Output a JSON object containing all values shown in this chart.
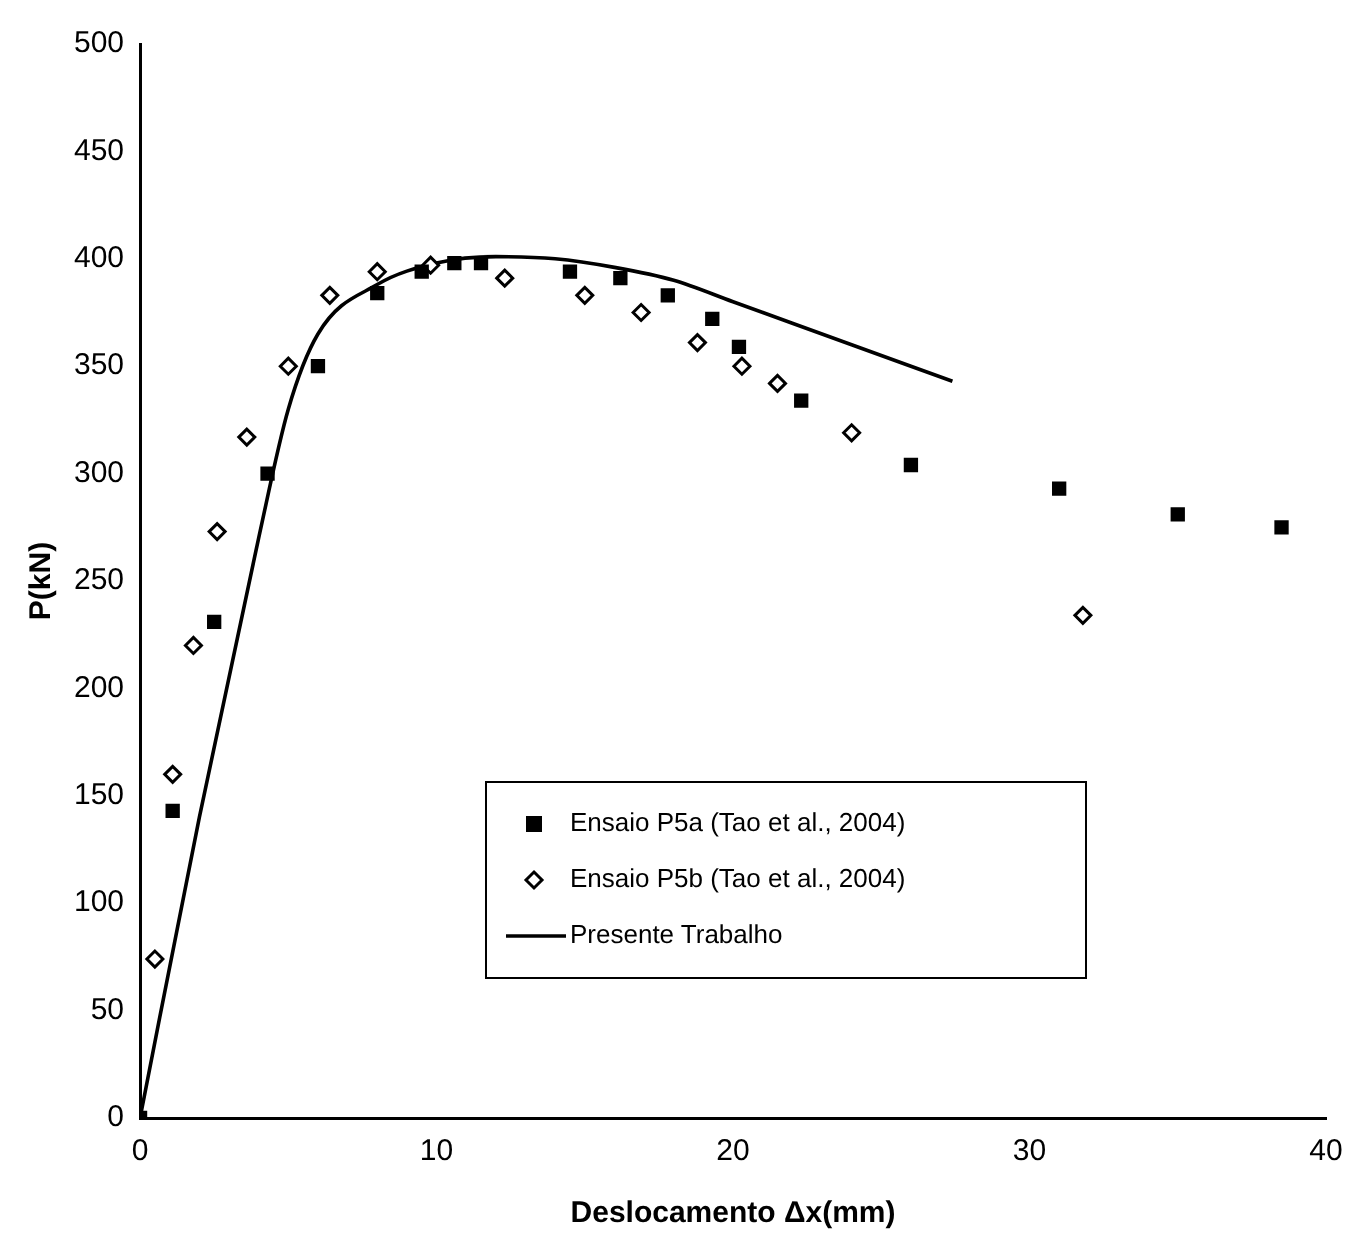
{
  "chart_data": {
    "type": "scatter",
    "xlabel": "Deslocamento Δx(mm)",
    "ylabel": "P(kN)",
    "xlim": [
      0,
      40
    ],
    "xticks": [
      0,
      10,
      20,
      30,
      40
    ],
    "ylim": [
      0,
      500
    ],
    "yticks": [
      0,
      50,
      100,
      150,
      200,
      250,
      300,
      350,
      400,
      450,
      500
    ],
    "grid": false,
    "legend": "bottom right",
    "series": [
      {
        "name": "Ensaio P5a (Tao et al., 2004)",
        "marker": "square",
        "color": "#000000",
        "x": [
          0,
          1.1,
          2.5,
          4.3,
          6,
          8,
          9.5,
          10.6,
          11.5,
          14.5,
          16.2,
          17.8,
          19.3,
          20.2,
          22.3,
          26,
          31,
          35,
          38.5
        ],
        "values": [
          0,
          143,
          231,
          300,
          350,
          384,
          394,
          398,
          398,
          394,
          391,
          383,
          372,
          359,
          334,
          304,
          293,
          281,
          275
        ]
      },
      {
        "name": "Ensaio P5b (Tao et al., 2004)",
        "marker": "diamond",
        "color": "#000000",
        "x": [
          0.5,
          1.1,
          1.8,
          2.6,
          3.6,
          5,
          6.4,
          8,
          9.8,
          12.3,
          15,
          16.9,
          18.8,
          20.3,
          21.5,
          24,
          31.8
        ],
        "values": [
          74,
          160,
          220,
          273,
          317,
          350,
          383,
          394,
          397,
          391,
          383,
          375,
          361,
          350,
          342,
          319,
          234
        ]
      },
      {
        "name": "Presente Trabalho",
        "type": "line",
        "marker": "none",
        "color": "#000000",
        "x": [
          0,
          2,
          4,
          5,
          6,
          8,
          10,
          12,
          14,
          16,
          18,
          20,
          22,
          24,
          26,
          27.4
        ],
        "values": [
          0,
          140,
          270,
          330,
          365,
          388,
          398,
          401,
          400,
          396,
          390,
          380,
          370,
          360,
          350,
          343
        ]
      }
    ]
  }
}
